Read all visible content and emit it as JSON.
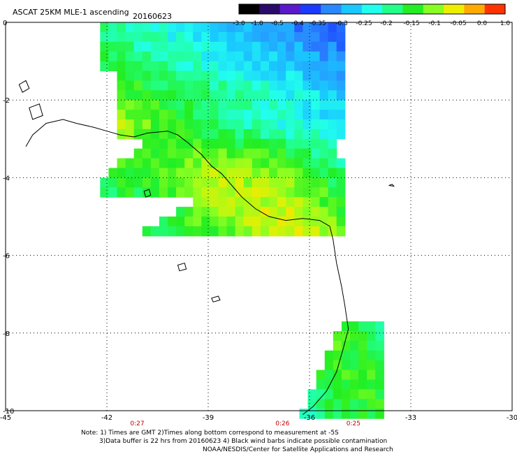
{
  "chart_data": {
    "type": "heatmap",
    "title": "ASCAT 25KM MLE-1 ascending",
    "date": "20160623",
    "xlim": [
      -45,
      -30
    ],
    "ylim": [
      -10,
      0
    ],
    "x_ticks": [
      "-45",
      "-42",
      "-39",
      "-36",
      "-33",
      "-30"
    ],
    "y_ticks": [
      "0",
      "-2",
      "-4",
      "-6",
      "-8",
      "-10"
    ],
    "colorbar": {
      "labels": [
        "-3.0",
        "-1.0",
        "-0.5",
        "-0.4",
        "-0.35",
        "-0.3",
        "-0.25",
        "-0.2",
        "-0.15",
        "-0.1",
        "-0.05",
        "0.0",
        "1.0"
      ],
      "colors": [
        "#000000",
        "#2a0a6a",
        "#5a1acc",
        "#1a3aff",
        "#2a88ff",
        "#1ac8ff",
        "#22ffee",
        "#22ff88",
        "#22ee22",
        "#88ff22",
        "#eeee00",
        "#ffaa00",
        "#ff3300"
      ]
    },
    "grid": true,
    "time_labels": [
      {
        "lon": -41.1,
        "text": "0:27"
      },
      {
        "lon": -36.8,
        "text": "0:26"
      },
      {
        "lon": -34.7,
        "text": "0:25"
      }
    ],
    "swaths": [
      {
        "name": "north",
        "lon_range": [
          -42.2,
          -35.0
        ],
        "lat_range": [
          -5.3,
          0.0
        ],
        "value_field": [
          [
            -0.2,
            -0.25,
            -0.3,
            -0.35,
            -0.4
          ],
          [
            -0.17,
            -0.22,
            -0.27,
            -0.3,
            -0.35
          ],
          [
            -0.12,
            -0.16,
            -0.2,
            -0.25,
            -0.3
          ],
          [
            -0.05,
            -0.14,
            -0.2,
            -0.24,
            -0.28
          ],
          [
            -0.15,
            -0.13,
            -0.1,
            -0.13,
            -0.22
          ],
          [
            -0.18,
            -0.15,
            -0.06,
            -0.08,
            -0.16
          ],
          [
            -0.2,
            -0.18,
            -0.12,
            -0.05,
            -0.12
          ]
        ]
      },
      {
        "name": "south",
        "lon_range": [
          -36.3,
          -33.8
        ],
        "lat_range": [
          -10.1,
          -7.7
        ],
        "value_field": [
          [
            -0.2,
            -0.12,
            -0.15,
            -0.2
          ],
          [
            -0.03,
            -0.12,
            -0.15,
            -0.18
          ],
          [
            -0.2,
            -0.16,
            -0.14,
            -0.14
          ],
          [
            -0.24,
            -0.18,
            -0.16,
            -0.15
          ]
        ]
      }
    ]
  },
  "notes": [
    "Note: 1) Times are GMT 2)Times along bottom correspond to measurement at -5S",
    "3)Data buffer is 22 hrs from 20160623 4) Black wind barbs indicate possible contamination",
    "NOAA/NESDIS/Center for Satellite Applications and Research"
  ]
}
